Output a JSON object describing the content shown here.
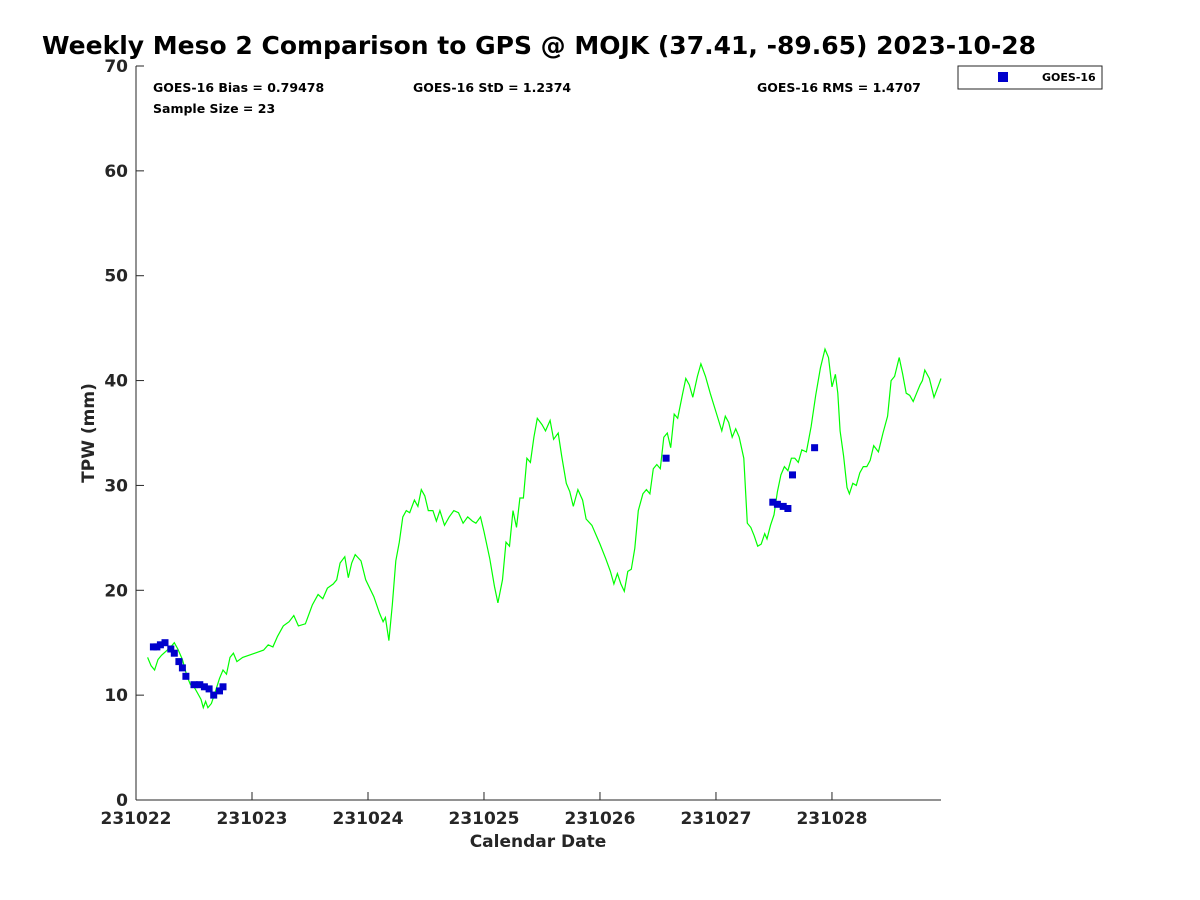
{
  "chart_data": {
    "type": "line",
    "title": "Weekly Meso 2 Comparison to GPS @ MOJK (37.41, -89.65) 2023-10-28",
    "xlabel": "Calendar Date",
    "ylabel": "TPW (mm)",
    "xlim": [
      231022,
      231028.94
    ],
    "ylim": [
      0,
      70
    ],
    "x_ticks": [
      {
        "value": 231022,
        "label": "231022"
      },
      {
        "value": 231023,
        "label": "231023"
      },
      {
        "value": 231024,
        "label": "231024"
      },
      {
        "value": 231025,
        "label": "231025"
      },
      {
        "value": 231026,
        "label": "231026"
      },
      {
        "value": 231027,
        "label": "231027"
      },
      {
        "value": 231028,
        "label": "231028"
      }
    ],
    "y_ticks": [
      {
        "value": 0,
        "label": "0"
      },
      {
        "value": 10,
        "label": "10"
      },
      {
        "value": 20,
        "label": "20"
      },
      {
        "value": 30,
        "label": "30"
      },
      {
        "value": 40,
        "label": "40"
      },
      {
        "value": 50,
        "label": "50"
      },
      {
        "value": 60,
        "label": "60"
      },
      {
        "value": 70,
        "label": "70"
      }
    ],
    "grid": false,
    "legend": {
      "position": "top-right",
      "entries": [
        "GOES-16"
      ]
    },
    "stats": {
      "bias": "GOES-16 Bias = 0.79478",
      "std": "GOES-16 StD = 1.2374",
      "rms": "GOES-16 RMS = 1.4707",
      "sample_size": "Sample Size = 23"
    },
    "series": [
      {
        "color": "#00ff00",
        "type": "line",
        "points": [
          [
            231022.1,
            13.6
          ],
          [
            231022.13,
            12.8
          ],
          [
            231022.16,
            12.4
          ],
          [
            231022.19,
            13.4
          ],
          [
            231022.22,
            13.8
          ],
          [
            231022.26,
            14.2
          ],
          [
            231022.3,
            14.6
          ],
          [
            231022.33,
            15.0
          ],
          [
            231022.36,
            14.4
          ],
          [
            231022.4,
            13.4
          ],
          [
            231022.44,
            11.8
          ],
          [
            231022.47,
            11.0
          ],
          [
            231022.5,
            10.8
          ],
          [
            231022.53,
            10.2
          ],
          [
            231022.56,
            9.6
          ],
          [
            231022.58,
            8.8
          ],
          [
            231022.6,
            9.4
          ],
          [
            231022.62,
            8.8
          ],
          [
            231022.65,
            9.2
          ],
          [
            231022.68,
            10.2
          ],
          [
            231022.72,
            11.6
          ],
          [
            231022.75,
            12.4
          ],
          [
            231022.78,
            12.0
          ],
          [
            231022.81,
            13.6
          ],
          [
            231022.84,
            14.0
          ],
          [
            231022.87,
            13.2
          ],
          [
            231022.92,
            13.6
          ],
          [
            231023.0,
            13.9
          ],
          [
            231023.1,
            14.3
          ],
          [
            231023.14,
            14.8
          ],
          [
            231023.18,
            14.6
          ],
          [
            231023.22,
            15.6
          ],
          [
            231023.27,
            16.6
          ],
          [
            231023.32,
            17.0
          ],
          [
            231023.36,
            17.6
          ],
          [
            231023.4,
            16.6
          ],
          [
            231023.46,
            16.8
          ],
          [
            231023.52,
            18.6
          ],
          [
            231023.57,
            19.6
          ],
          [
            231023.61,
            19.2
          ],
          [
            231023.65,
            20.2
          ],
          [
            231023.7,
            20.6
          ],
          [
            231023.73,
            21.0
          ],
          [
            231023.76,
            22.6
          ],
          [
            231023.8,
            23.2
          ],
          [
            231023.83,
            21.2
          ],
          [
            231023.86,
            22.6
          ],
          [
            231023.89,
            23.4
          ],
          [
            231023.94,
            22.8
          ],
          [
            231023.98,
            21.0
          ],
          [
            231024.05,
            19.4
          ],
          [
            231024.1,
            17.8
          ],
          [
            231024.13,
            17.0
          ],
          [
            231024.15,
            17.4
          ],
          [
            231024.18,
            15.2
          ],
          [
            231024.21,
            18.6
          ],
          [
            231024.24,
            22.8
          ],
          [
            231024.27,
            24.6
          ],
          [
            231024.3,
            27.0
          ],
          [
            231024.33,
            27.6
          ],
          [
            231024.36,
            27.4
          ],
          [
            231024.4,
            28.6
          ],
          [
            231024.43,
            28.0
          ],
          [
            231024.46,
            29.6
          ],
          [
            231024.49,
            29.0
          ],
          [
            231024.52,
            27.6
          ],
          [
            231024.56,
            27.6
          ],
          [
            231024.59,
            26.6
          ],
          [
            231024.62,
            27.6
          ],
          [
            231024.66,
            26.2
          ],
          [
            231024.7,
            27.0
          ],
          [
            231024.74,
            27.6
          ],
          [
            231024.78,
            27.4
          ],
          [
            231024.82,
            26.4
          ],
          [
            231024.86,
            27.0
          ],
          [
            231024.9,
            26.6
          ],
          [
            231024.93,
            26.4
          ],
          [
            231024.97,
            27.0
          ],
          [
            231025.0,
            25.6
          ],
          [
            231025.05,
            23.0
          ],
          [
            231025.09,
            20.4
          ],
          [
            231025.12,
            18.8
          ],
          [
            231025.16,
            21.0
          ],
          [
            231025.19,
            24.6
          ],
          [
            231025.22,
            24.2
          ],
          [
            231025.25,
            27.6
          ],
          [
            231025.28,
            26.0
          ],
          [
            231025.31,
            28.8
          ],
          [
            231025.34,
            28.8
          ],
          [
            231025.37,
            32.6
          ],
          [
            231025.4,
            32.2
          ],
          [
            231025.43,
            34.6
          ],
          [
            231025.46,
            36.4
          ],
          [
            231025.5,
            35.8
          ],
          [
            231025.53,
            35.2
          ],
          [
            231025.57,
            36.2
          ],
          [
            231025.6,
            34.4
          ],
          [
            231025.64,
            35.0
          ],
          [
            231025.67,
            32.8
          ],
          [
            231025.71,
            30.2
          ],
          [
            231025.74,
            29.4
          ],
          [
            231025.77,
            28.0
          ],
          [
            231025.81,
            29.6
          ],
          [
            231025.85,
            28.6
          ],
          [
            231025.88,
            26.8
          ],
          [
            231025.93,
            26.2
          ],
          [
            231026.0,
            24.4
          ],
          [
            231026.05,
            23.0
          ],
          [
            231026.09,
            21.8
          ],
          [
            231026.12,
            20.6
          ],
          [
            231026.15,
            21.6
          ],
          [
            231026.18,
            20.6
          ],
          [
            231026.21,
            19.9
          ],
          [
            231026.24,
            21.8
          ],
          [
            231026.27,
            22.0
          ],
          [
            231026.3,
            24.0
          ],
          [
            231026.33,
            27.6
          ],
          [
            231026.37,
            29.2
          ],
          [
            231026.4,
            29.6
          ],
          [
            231026.43,
            29.2
          ],
          [
            231026.46,
            31.6
          ],
          [
            231026.49,
            32.0
          ],
          [
            231026.52,
            31.6
          ],
          [
            231026.55,
            34.6
          ],
          [
            231026.58,
            35.0
          ],
          [
            231026.61,
            33.6
          ],
          [
            231026.64,
            36.8
          ],
          [
            231026.67,
            36.4
          ],
          [
            231026.71,
            38.6
          ],
          [
            231026.74,
            40.2
          ],
          [
            231026.77,
            39.6
          ],
          [
            231026.8,
            38.4
          ],
          [
            231026.84,
            40.4
          ],
          [
            231026.87,
            41.6
          ],
          [
            231026.91,
            40.4
          ],
          [
            231026.95,
            38.8
          ],
          [
            231027.0,
            37.0
          ],
          [
            231027.05,
            35.2
          ],
          [
            231027.08,
            36.6
          ],
          [
            231027.11,
            36.0
          ],
          [
            231027.14,
            34.6
          ],
          [
            231027.17,
            35.4
          ],
          [
            231027.2,
            34.6
          ],
          [
            231027.24,
            32.6
          ],
          [
            231027.27,
            26.4
          ],
          [
            231027.3,
            26.0
          ],
          [
            231027.33,
            25.2
          ],
          [
            231027.36,
            24.2
          ],
          [
            231027.39,
            24.4
          ],
          [
            231027.42,
            25.4
          ],
          [
            231027.44,
            24.9
          ],
          [
            231027.47,
            26.2
          ],
          [
            231027.5,
            27.2
          ],
          [
            231027.53,
            29.4
          ],
          [
            231027.56,
            31.0
          ],
          [
            231027.59,
            31.8
          ],
          [
            231027.62,
            31.4
          ],
          [
            231027.65,
            32.6
          ],
          [
            231027.68,
            32.6
          ],
          [
            231027.71,
            32.2
          ],
          [
            231027.74,
            33.4
          ],
          [
            231027.78,
            33.2
          ],
          [
            231027.82,
            35.6
          ],
          [
            231027.86,
            38.6
          ],
          [
            231027.9,
            41.2
          ],
          [
            231027.94,
            43.0
          ],
          [
            231027.97,
            42.2
          ],
          [
            231028.0,
            39.4
          ],
          [
            231028.03,
            40.6
          ],
          [
            231028.05,
            38.8
          ],
          [
            231028.07,
            35.2
          ],
          [
            231028.1,
            32.8
          ],
          [
            231028.13,
            29.8
          ],
          [
            231028.15,
            29.2
          ],
          [
            231028.18,
            30.2
          ],
          [
            231028.21,
            30.0
          ],
          [
            231028.24,
            31.2
          ],
          [
            231028.27,
            31.8
          ],
          [
            231028.3,
            31.8
          ],
          [
            231028.33,
            32.4
          ],
          [
            231028.36,
            33.8
          ],
          [
            231028.4,
            33.2
          ],
          [
            231028.44,
            35.0
          ],
          [
            231028.48,
            36.6
          ],
          [
            231028.51,
            40.0
          ],
          [
            231028.54,
            40.4
          ],
          [
            231028.58,
            42.2
          ],
          [
            231028.61,
            40.6
          ],
          [
            231028.64,
            38.8
          ],
          [
            231028.67,
            38.6
          ],
          [
            231028.7,
            38.0
          ],
          [
            231028.73,
            38.8
          ],
          [
            231028.76,
            39.6
          ],
          [
            231028.78,
            40.0
          ],
          [
            231028.8,
            41.0
          ],
          [
            231028.84,
            40.2
          ],
          [
            231028.88,
            38.4
          ],
          [
            231028.92,
            39.6
          ],
          [
            231028.94,
            40.2
          ]
        ]
      },
      {
        "name": "GOES-16",
        "color": "#0000cc",
        "type": "scatter",
        "points": [
          [
            231022.15,
            14.6
          ],
          [
            231022.18,
            14.6
          ],
          [
            231022.21,
            14.8
          ],
          [
            231022.25,
            15.0
          ],
          [
            231022.3,
            14.4
          ],
          [
            231022.33,
            14.0
          ],
          [
            231022.37,
            13.2
          ],
          [
            231022.4,
            12.6
          ],
          [
            231022.43,
            11.8
          ],
          [
            231022.5,
            11.0
          ],
          [
            231022.55,
            11.0
          ],
          [
            231022.59,
            10.8
          ],
          [
            231022.63,
            10.6
          ],
          [
            231022.67,
            10.0
          ],
          [
            231022.72,
            10.4
          ],
          [
            231022.75,
            10.8
          ],
          [
            231026.57,
            32.6
          ],
          [
            231027.49,
            28.4
          ],
          [
            231027.53,
            28.2
          ],
          [
            231027.58,
            28.0
          ],
          [
            231027.62,
            27.8
          ],
          [
            231027.66,
            31.0
          ],
          [
            231027.85,
            33.6
          ]
        ]
      }
    ]
  }
}
